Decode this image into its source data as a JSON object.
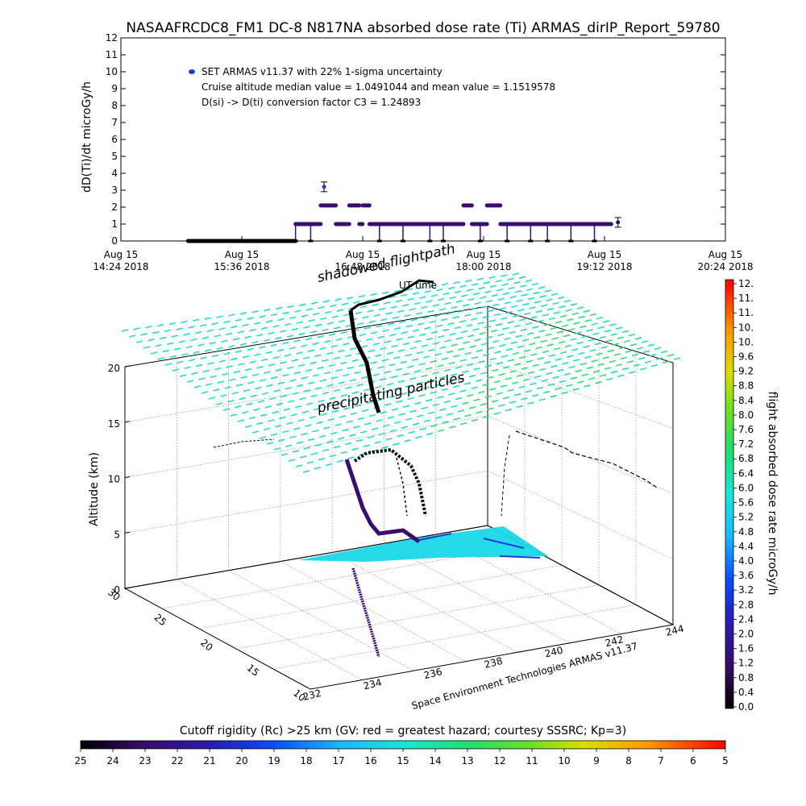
{
  "header": {
    "title": "NASAAFRCDC8_FM1 DC-8   N817NA absorbed dose rate (Ti) ARMAS_dirIP_Report_59780"
  },
  "chart_data": [
    {
      "type": "scatter",
      "ylabel": "dD(Ti)/dt microGy/h",
      "ylim": [
        0,
        12
      ],
      "yticks": [
        "0",
        "1",
        "2",
        "3",
        "4",
        "5",
        "6",
        "7",
        "8",
        "9",
        "10",
        "11",
        "12"
      ],
      "xticks": [
        {
          "date": "Aug 15",
          "time": "14:24 2018"
        },
        {
          "date": "Aug 15",
          "time": "15:36 2018"
        },
        {
          "date": "Aug 15",
          "time": "16:48 2018"
        },
        {
          "date": "Aug 15",
          "time": "18:00 2018"
        },
        {
          "date": "Aug 15",
          "time": "19:12 2018"
        },
        {
          "date": "Aug 15",
          "time": "20:24 2018"
        }
      ],
      "xlim": [
        "14:24",
        "20:24"
      ],
      "legend": [
        "SET ARMAS v11.37 with 22% 1-sigma uncertainty",
        "Cruise altitude median value = 1.0491044 and mean value = 1.1519578",
        "D(si) -> D(ti) conversion factor C3 = 1.24893"
      ],
      "series_color": "#3b0c6e",
      "series": [
        {
          "x": [
            "15:04",
            "16:08"
          ],
          "y": 0
        },
        {
          "x": [
            "16:08",
            "16:23"
          ],
          "y": 1
        },
        {
          "x": [
            "16:23",
            "16:32"
          ],
          "y": 2.1
        },
        {
          "x": [
            "16:25"
          ],
          "y": 3.2
        },
        {
          "x": [
            "16:32",
            "16:40"
          ],
          "y": 1
        },
        {
          "x": [
            "16:40",
            "16:46"
          ],
          "y": 2.1
        },
        {
          "x": [
            "16:46",
            "16:48"
          ],
          "y": 1
        },
        {
          "x": [
            "16:48",
            "16:52"
          ],
          "y": 2.1
        },
        {
          "x": [
            "16:52",
            "17:48"
          ],
          "y": 1
        },
        {
          "x": [
            "17:48",
            "17:53"
          ],
          "y": 2.1
        },
        {
          "x": [
            "17:53",
            "18:02"
          ],
          "y": 1
        },
        {
          "x": [
            "18:02",
            "18:10"
          ],
          "y": 2.1
        },
        {
          "x": [
            "18:10",
            "19:16"
          ],
          "y": 1
        },
        {
          "x": [
            "19:20"
          ],
          "y": 1.1
        }
      ],
      "dips": [
        "16:08",
        "16:17",
        "16:58",
        "17:12",
        "17:28",
        "17:36",
        "17:58",
        "18:14",
        "18:28",
        "18:38",
        "18:52",
        "19:06"
      ]
    },
    {
      "type": "scatter",
      "ylabel": "Altitude (km)",
      "zticks": [
        "0",
        "5",
        "10",
        "15",
        "20"
      ],
      "xticks": [
        "232",
        "234",
        "236",
        "238",
        "240",
        "242",
        "244"
      ],
      "yticks": [
        "10",
        "15",
        "20",
        "25",
        "30"
      ],
      "labels": [
        "shadowed flightpath",
        "UT time",
        "precipitating particles"
      ],
      "credit": "Space Environment Technologies ARMAS v11.37"
    },
    {
      "type": "heatmap",
      "colorbar_label": "flight absorbed dose rate microGy/h",
      "colorbar_ticks": [
        "0.0",
        "0.4",
        "0.8",
        "1.2",
        "1.6",
        "2.0",
        "2.4",
        "2.8",
        "3.2",
        "3.6",
        "4.0",
        "4.4",
        "4.8",
        "5.2",
        "5.6",
        "6.0",
        "6.4",
        "6.8",
        "7.2",
        "7.6",
        "8.0",
        "8.4",
        "8.8",
        "9.2",
        "9.6",
        "10.",
        "10.",
        "11.",
        "11.",
        "12."
      ]
    },
    {
      "type": "heatmap",
      "colorbar_label": "Cutoff rigidity (Rc) >25 km (GV: red = greatest hazard; courtesy SSSRC; Kp=3)",
      "colorbar_ticks": [
        "25",
        "24",
        "23",
        "22",
        "21",
        "20",
        "19",
        "18",
        "17",
        "16",
        "15",
        "14",
        "13",
        "12",
        "11",
        "10",
        "9",
        "8",
        "7",
        "6",
        "5"
      ]
    }
  ]
}
